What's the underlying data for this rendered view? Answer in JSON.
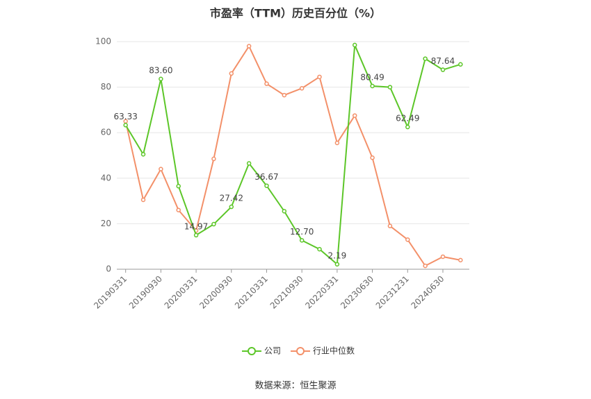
{
  "chart_data": {
    "type": "line",
    "title": "市盈率（TTM）历史百分位（%）",
    "source": "数据来源：恒生聚源",
    "categories": [
      "20190331",
      null,
      "20190930",
      null,
      "20200331",
      null,
      "20200930",
      null,
      "20210331",
      null,
      "20210930",
      null,
      "20220331",
      null,
      "20230630",
      null,
      "20231231",
      null,
      "20240630",
      null
    ],
    "series": [
      {
        "name": "公司",
        "color": "#5cc628",
        "values": [
          63.33,
          50.5,
          83.6,
          36.5,
          14.97,
          19.8,
          27.42,
          46.5,
          36.67,
          25.5,
          12.7,
          8.8,
          2.19,
          98.5,
          80.49,
          80,
          62.49,
          92.5,
          87.64,
          90
        ],
        "value_labels": [
          "63.33",
          null,
          "83.60",
          null,
          "14.97",
          null,
          "27.42",
          null,
          "36.67",
          null,
          "12.70",
          null,
          "2.19",
          null,
          "80.49",
          null,
          "62.49",
          null,
          "87.64",
          null
        ]
      },
      {
        "name": "行业中位数",
        "color": "#f39069",
        "values": [
          65,
          30.5,
          44,
          26,
          17,
          48.5,
          86,
          98,
          81.5,
          76.5,
          79.5,
          84.5,
          55.5,
          67.5,
          49,
          19,
          13,
          1.5,
          5.5,
          4
        ]
      }
    ],
    "ylim": [
      0,
      100
    ],
    "yticks": [
      0,
      20,
      40,
      60,
      80,
      100
    ],
    "grid": true
  }
}
